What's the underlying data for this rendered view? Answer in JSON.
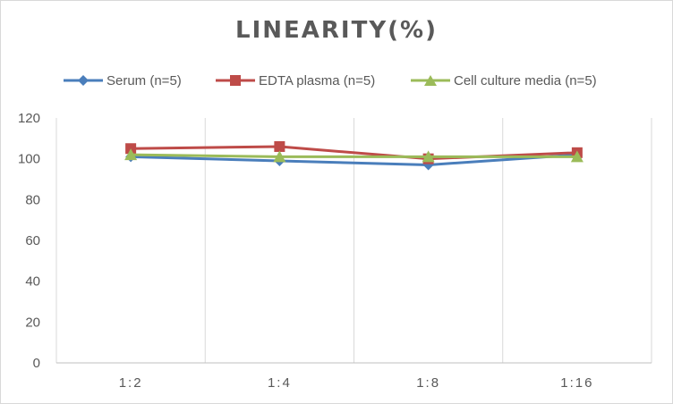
{
  "chart_data": {
    "type": "line",
    "title": "LINEARITY(%)",
    "categories": [
      "1:2",
      "1:4",
      "1:8",
      "1:16"
    ],
    "ylim": [
      0,
      120
    ],
    "yticks": [
      0,
      20,
      40,
      60,
      80,
      100,
      120
    ],
    "grid": "vertical",
    "legend_position": "top",
    "series": [
      {
        "name": "Serum (n=5)",
        "color": "#4a7ebb",
        "marker": "diamond",
        "values": [
          101,
          99,
          97,
          102
        ]
      },
      {
        "name": "EDTA plasma (n=5)",
        "color": "#be4b48",
        "marker": "square",
        "values": [
          105,
          106,
          100,
          103
        ]
      },
      {
        "name": "Cell culture media (n=5)",
        "color": "#9bbb59",
        "marker": "triangle",
        "values": [
          102,
          101,
          101,
          101
        ]
      }
    ]
  }
}
